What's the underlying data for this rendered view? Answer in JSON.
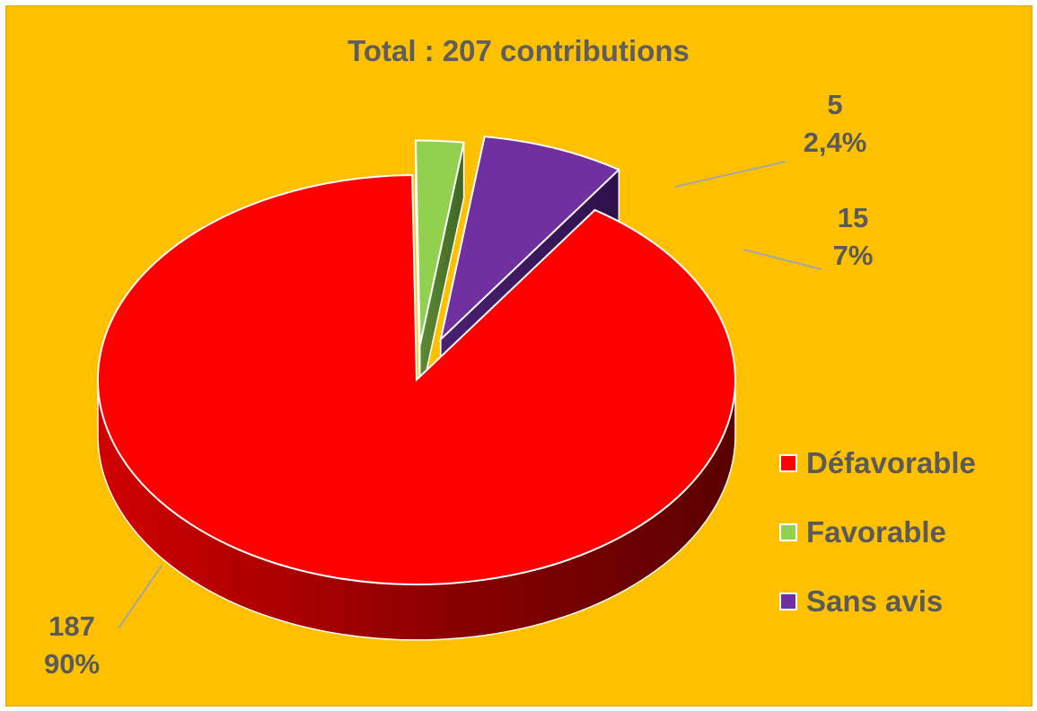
{
  "chart_data": {
    "type": "pie",
    "title": "Total : 207 contributions",
    "slices": [
      {
        "name": "Défavorable",
        "value": 187,
        "percent_label": "90%",
        "value_label": "187",
        "color": "#FF0000"
      },
      {
        "name": "Favorable",
        "value": 5,
        "percent_label": "2,4%",
        "value_label": "5",
        "color": "#92D050"
      },
      {
        "name": "Sans avis",
        "value": 15,
        "percent_label": "7%",
        "value_label": "15",
        "color": "#7030A0"
      }
    ],
    "legend_position": "right",
    "three_d": true,
    "exploded": [
      "Favorable",
      "Sans avis"
    ]
  },
  "colors": {
    "background": "#FFC000",
    "text": "#5A5A5A",
    "leader_line": "#A6A6A6"
  }
}
